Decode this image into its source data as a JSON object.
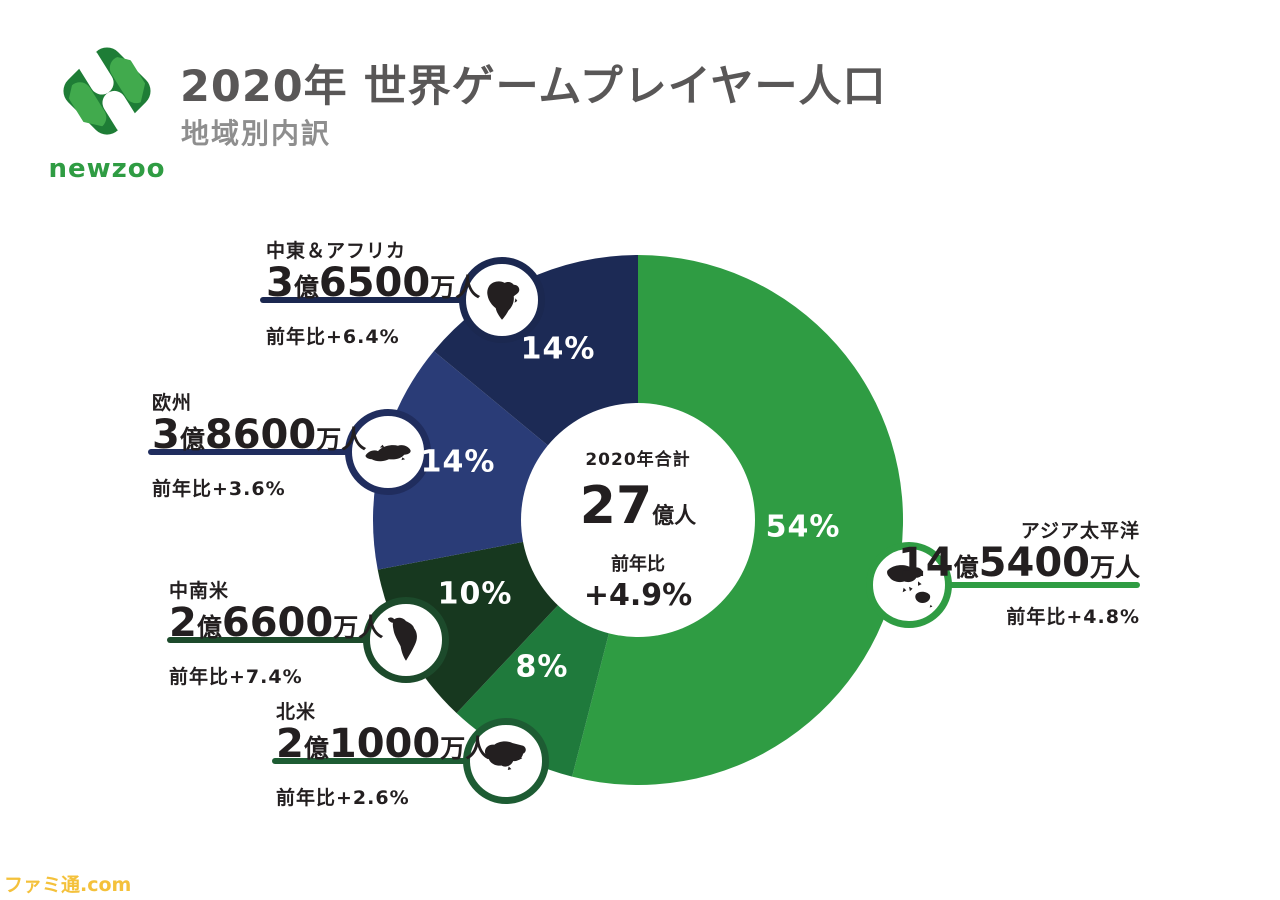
{
  "header": {
    "logo_text": "newzoo",
    "title": "2020年 世界ゲームプレイヤー人口",
    "subtitle": "地域別内訳"
  },
  "center": {
    "total_label": "2020年合計",
    "total_value": "27",
    "total_unit": "億人",
    "yoy_label": "前年比",
    "yoy_value": "+4.9%"
  },
  "watermark": "ファミ通.com",
  "chart_data": {
    "type": "pie",
    "title": "2020年 世界ゲームプレイヤー人口 地域別内訳",
    "subtype": "donut",
    "start_angle_deg": 0,
    "direction": "clockwise",
    "legend": "none",
    "total": {
      "label": "2020年合計",
      "value": "27億人",
      "yoy": "+4.9%"
    },
    "units": {
      "oku": "億",
      "man": "万人"
    },
    "regions": [
      {
        "id": "apac",
        "name": "アジア太平洋",
        "value_oku": "14",
        "value_man": "5400",
        "players_million": 1454,
        "share_pct": 54,
        "share_label": "54%",
        "yoy": "前年比+4.8%",
        "color": "#2f9c43",
        "accent": "#2f9c43"
      },
      {
        "id": "north-america",
        "name": "北米",
        "value_oku": "2",
        "value_man": "1000",
        "players_million": 210,
        "share_pct": 8,
        "share_label": "8%",
        "yoy": "前年比+2.6%",
        "color": "#1f7a3c",
        "accent": "#1d5c33"
      },
      {
        "id": "latam",
        "name": "中南米",
        "value_oku": "2",
        "value_man": "6600",
        "players_million": 266,
        "share_pct": 10,
        "share_label": "10%",
        "yoy": "前年比+7.4%",
        "color": "#17381f",
        "accent": "#1c4a2b"
      },
      {
        "id": "europe",
        "name": "欧州",
        "value_oku": "3",
        "value_man": "8600",
        "players_million": 386,
        "share_pct": 14,
        "share_label": "14%",
        "yoy": "前年比+3.6%",
        "color": "#2a3c77",
        "accent": "#202d5e"
      },
      {
        "id": "mea",
        "name": "中東＆アフリカ",
        "value_oku": "3",
        "value_man": "6500",
        "players_million": 365,
        "share_pct": 14,
        "share_label": "14%",
        "yoy": "前年比+6.4%",
        "color": "#1c2a55",
        "accent": "#1b2850"
      }
    ]
  }
}
